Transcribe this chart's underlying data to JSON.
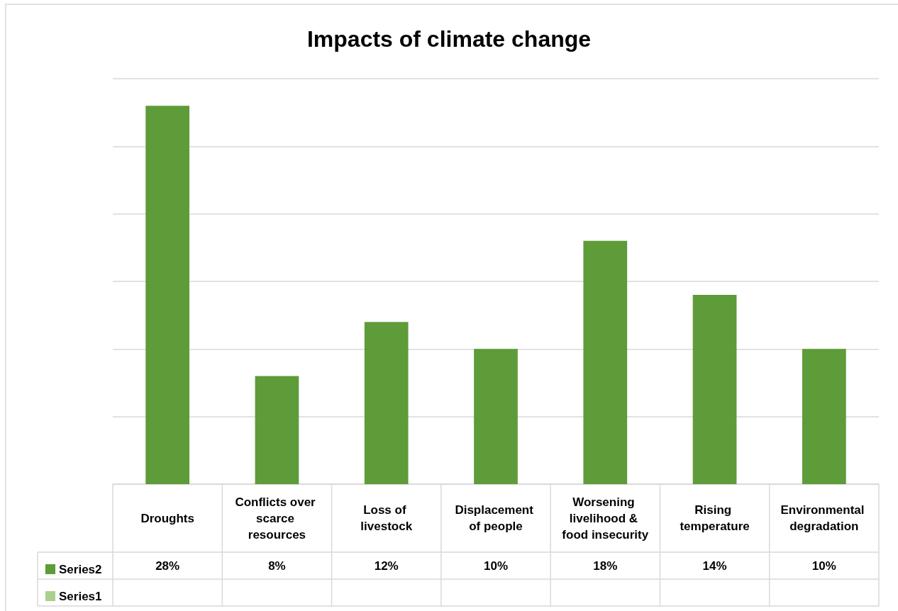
{
  "chart_data": {
    "type": "bar",
    "title": "Impacts of climate change",
    "categories": [
      "Droughts",
      "Conflicts over scarce resources",
      "Loss of livestock",
      "Displacement of people",
      "Worsening livelihood & food insecurity",
      "Rising temperature",
      "Environmental degradation"
    ],
    "series": [
      {
        "name": "Series2",
        "color": "#5e9b39",
        "values": [
          28,
          8,
          12,
          10,
          18,
          14,
          10
        ],
        "value_labels": [
          "28%",
          "8%",
          "12%",
          "10%",
          "18%",
          "14%",
          "10%"
        ]
      },
      {
        "name": "Series1",
        "color": "#a9d08e",
        "values": [
          null,
          null,
          null,
          null,
          null,
          null,
          null
        ]
      }
    ],
    "ylim": [
      0,
      30
    ],
    "yticks": [
      {
        "value": 0,
        "label": null
      },
      {
        "value": 5,
        "label": null
      },
      {
        "value": 10,
        "label": null
      },
      {
        "value": 15,
        "label": null
      },
      {
        "value": 20,
        "label": null
      },
      {
        "value": 25,
        "label": null
      },
      {
        "value": 30,
        "label": null
      }
    ],
    "grid": "y",
    "legend": "bottom left",
    "tick_labels": "x"
  }
}
